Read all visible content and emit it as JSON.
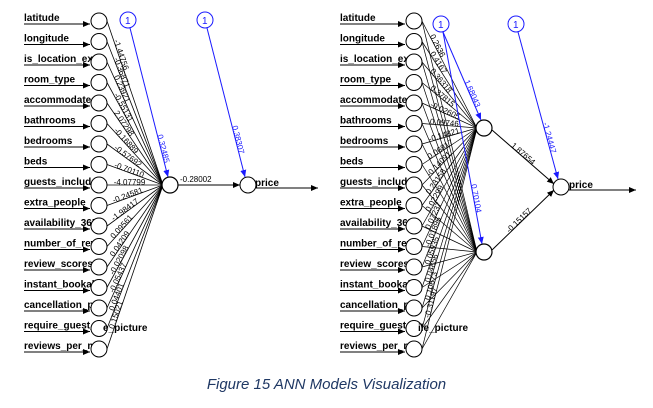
{
  "caption": "Figure 15 ANN Models Visualization",
  "inputs": [
    "latitude",
    "longitude",
    "is_location_exa",
    "room_type",
    "accommodates",
    "bathrooms",
    "bedrooms",
    "beds",
    "guests_include",
    "extra_people",
    "availability_365",
    "number_of_rev",
    "review_scores",
    "instant_bookab",
    "cancellation_po",
    "require_guest_p",
    "reviews_per_m"
  ],
  "bias_label": "1",
  "output_label": "price",
  "extra_label_left": "e_picture",
  "extra_label_right": "ile_picture",
  "left_model": {
    "hidden_bias": "0.32485",
    "output_bias": "0.38307",
    "hidden_to_output": "-0.28002",
    "input_weights": [
      "-1.44756",
      "-0.36871",
      "0.23921",
      "-0.55131",
      "2.07298",
      "-0.16889",
      "-0.57692",
      "-0.70110",
      "-4.07799",
      "-0.24581",
      "-1.98417",
      "0.09561",
      "0.04209",
      "-0.02098",
      "-0.05437",
      "0.04401",
      "0.15021"
    ]
  },
  "right_model": {
    "hidden_biases": [
      "1.68043",
      "0.70104"
    ],
    "output_bias": "-1.24447",
    "hidden_to_output": [
      "1.87654",
      "-0.15157"
    ],
    "input_weights": [
      "0.2636",
      "0.4167",
      "0.36318",
      "0.37815",
      "-0.02605",
      "0.09746",
      "-0.14821",
      "0.06817",
      "-0.14091",
      "0.23158",
      "0.02299",
      "0.07237",
      "-0.01896",
      "0.05935",
      "0.04856",
      "0.10673",
      "-0.31197"
    ]
  }
}
